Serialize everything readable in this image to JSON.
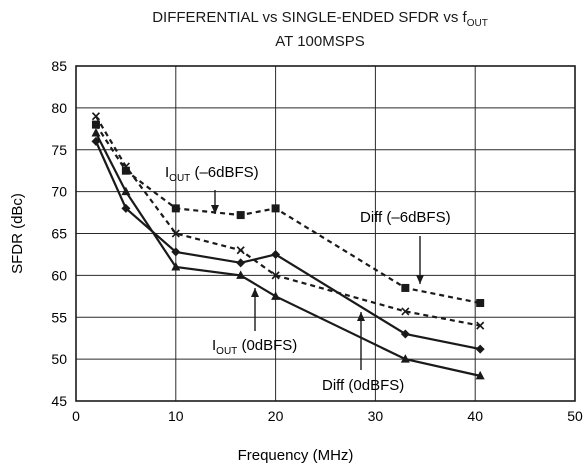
{
  "chart_data": {
    "type": "line",
    "title_main": "DIFFERENTIAL vs SINGLE-ENDED SFDR vs f",
    "title_sub": "OUT",
    "title_line2": "AT 100MSPS",
    "xlabel": "Frequency (MHz)",
    "ylabel": "SFDR (dBc)",
    "xlim": [
      0,
      50
    ],
    "ylim": [
      45,
      85
    ],
    "xticks": [
      "0",
      "10",
      "20",
      "30",
      "40",
      "50"
    ],
    "yticks": [
      "45",
      "50",
      "55",
      "60",
      "65",
      "70",
      "75",
      "80",
      "85"
    ],
    "grid": true,
    "series": [
      {
        "name": "Diff (–6dBFS)",
        "style": "dashed",
        "marker": "square",
        "x": [
          2,
          5,
          10,
          16.5,
          20,
          33,
          40.5
        ],
        "y": [
          78,
          72.5,
          68,
          67.2,
          68,
          58.5,
          56.7
        ]
      },
      {
        "name": "I_OUT (–6dBFS)",
        "style": "dashed",
        "marker": "x",
        "x": [
          2,
          5,
          10,
          16.5,
          20,
          33,
          40.5
        ],
        "y": [
          79,
          73,
          65,
          63,
          60,
          55.7,
          54
        ]
      },
      {
        "name": "I_OUT (0dBFS)",
        "style": "solid",
        "marker": "diamond",
        "x": [
          2,
          5,
          10,
          16.5,
          20,
          33,
          40.5
        ],
        "y": [
          76,
          68,
          62.8,
          61.5,
          62.5,
          53,
          51.2
        ]
      },
      {
        "name": "Diff (0dBFS)",
        "style": "solid",
        "marker": "triangle",
        "x": [
          2,
          5,
          10,
          16.5,
          20,
          33,
          40.5
        ],
        "y": [
          77,
          70,
          61,
          60,
          57.5,
          50,
          48
        ]
      }
    ],
    "annotations": [
      {
        "prefix": "I",
        "sub": "OUT",
        "suffix": " (–6dBFS)",
        "series": 1
      },
      {
        "prefix": "Diff (–6dBFS)",
        "sub": "",
        "suffix": "",
        "series": 0
      },
      {
        "prefix": "I",
        "sub": "OUT",
        "suffix": " (0dBFS)",
        "series": 2
      },
      {
        "prefix": "Diff (0dBFS)",
        "sub": "",
        "suffix": "",
        "series": 3
      }
    ]
  }
}
